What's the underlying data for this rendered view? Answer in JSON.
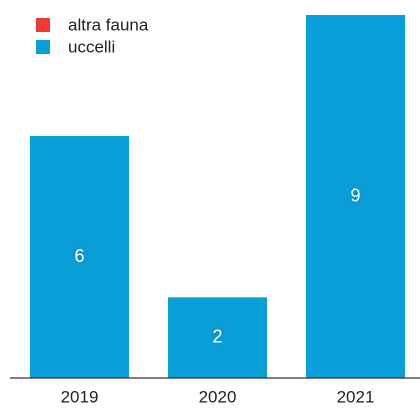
{
  "chart_data": {
    "type": "stacked-bar",
    "categories": [
      "2019",
      "2020",
      "2021"
    ],
    "series": [
      {
        "name": "altra fauna",
        "color": "#f03a33",
        "values": [
          0,
          0,
          0
        ]
      },
      {
        "name": "uccelli",
        "color": "#0a9fd9",
        "values": [
          6,
          2,
          9
        ]
      }
    ]
  }
}
